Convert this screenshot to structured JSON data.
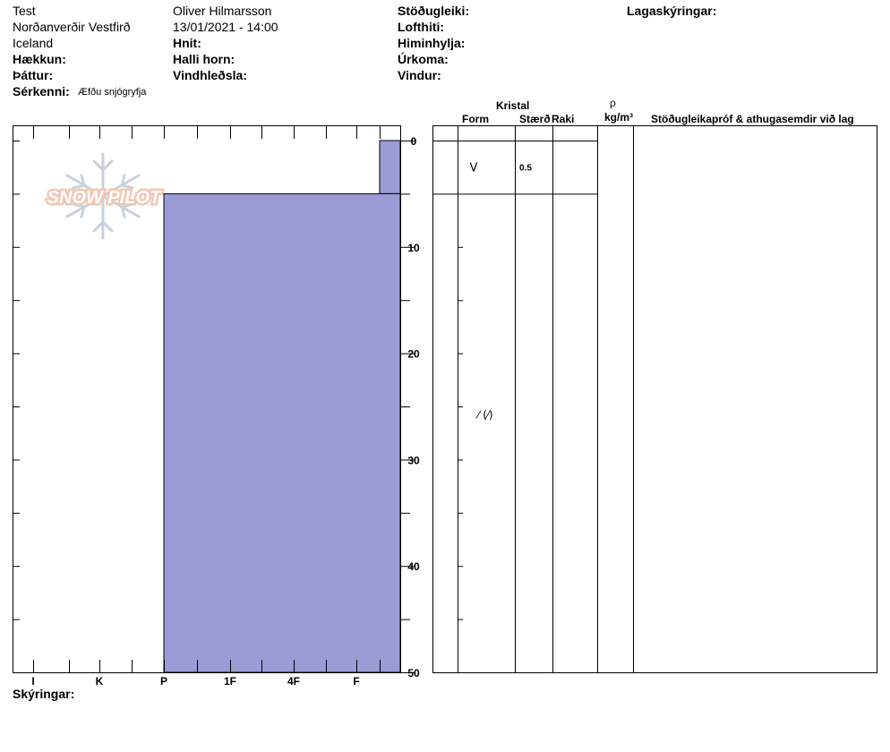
{
  "header": {
    "col1": [
      "Test",
      "Norðanverðir Vestfirð",
      "Iceland"
    ],
    "col2": [
      "Oliver Hilmarsson",
      "13/01/2021 - 14:00"
    ],
    "labels": {
      "stodugleiki": "Stöðugleiki:",
      "lagaskyringar": "Lagaskýringar:",
      "lofthiti": "Lofthiti:",
      "hnit": "Hnit:",
      "himinhylja": "Himinhylja:",
      "haekkun": "Hækkun:",
      "halli": "Halli horn:",
      "urkoma": "Úrkoma:",
      "thattur": "Þáttur:",
      "vindhledsla": "Vindhleðsla:",
      "vindur": "Vindur:",
      "serkenni": "Sérkenni:"
    },
    "serkenni_value": "Æfðu snjógryfja"
  },
  "table_headers": {
    "kristal": "Kristal",
    "form": "Form",
    "staerd": "Stærð",
    "raki": "Raki",
    "rho": "ρ",
    "density_unit": "kg/m³",
    "stability": "Stöðugleikapróf & athugasemdir við lag"
  },
  "footer": {
    "skyringar": "Skýringar:"
  },
  "watermark": "SNOW PILOT",
  "colors": {
    "layer_fill": "#9b9bd6",
    "watermark": "#f0c8b4",
    "flake": "#c8d2dc"
  },
  "chart_data": {
    "type": "bar",
    "depth_range": [
      0,
      50
    ],
    "depth_ticks": [
      0,
      10,
      20,
      30,
      40,
      50
    ],
    "hardness_scale": [
      "I",
      "K",
      "P",
      "1F",
      "4F",
      "F"
    ],
    "layers": [
      {
        "top": 0,
        "bottom": 5,
        "hardness": "F-",
        "form": "V",
        "size": "0.5"
      },
      {
        "top": 5,
        "bottom": 50,
        "hardness": "P",
        "form": "⁄ (⁄)",
        "size": ""
      }
    ]
  }
}
